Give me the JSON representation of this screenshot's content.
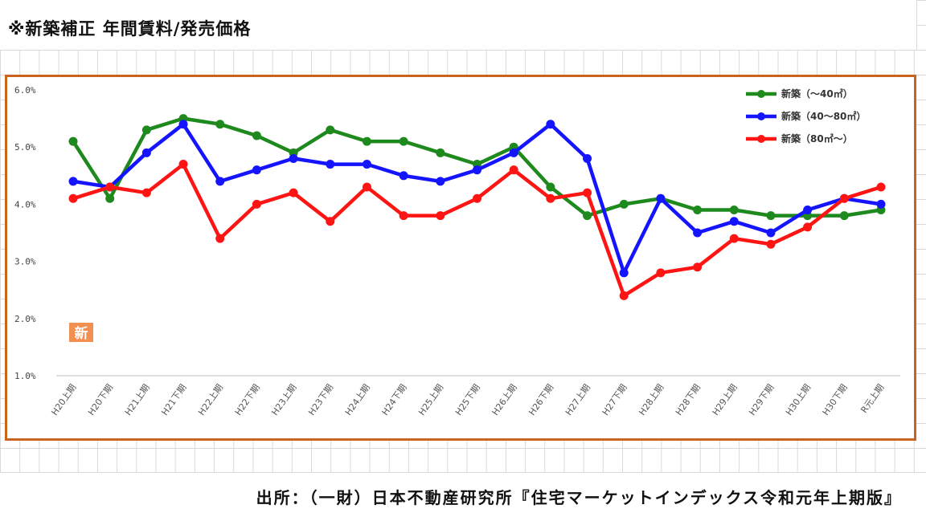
{
  "header": {
    "title": "※新築補正 年間賃料/発売価格"
  },
  "footer": {
    "source": "出所：（一財）日本不動産研究所『住宅マーケットインデックス令和元年上期版』"
  },
  "logo": {
    "char": "新",
    "color": "#f29052"
  },
  "chart_data": {
    "type": "line",
    "categories": [
      "H20上期",
      "H20下期",
      "H21上期",
      "H21下期",
      "H22上期",
      "H22下期",
      "H23上期",
      "H23下期",
      "H24上期",
      "H24下期",
      "H25上期",
      "H25下期",
      "H26上期",
      "H26下期",
      "H27上期",
      "H27下期",
      "H28上期",
      "H28下期",
      "H29上期",
      "H29下期",
      "H30上期",
      "H30下期",
      "R元上期"
    ],
    "series": [
      {
        "name": "新築（～40㎡）",
        "color": "#1e8a1e",
        "values": [
          5.1,
          4.1,
          5.3,
          5.5,
          5.4,
          5.2,
          4.9,
          5.3,
          5.1,
          5.1,
          4.9,
          4.7,
          5.0,
          4.3,
          3.8,
          4.0,
          4.1,
          3.9,
          3.9,
          3.8,
          3.8,
          3.8,
          3.9
        ]
      },
      {
        "name": "新築（40～80㎡）",
        "color": "#1414ff",
        "values": [
          4.4,
          4.3,
          4.9,
          5.4,
          4.4,
          4.6,
          4.8,
          4.7,
          4.7,
          4.5,
          4.4,
          4.6,
          4.9,
          5.4,
          4.8,
          2.8,
          4.1,
          3.5,
          3.7,
          3.5,
          3.9,
          4.1,
          4.0
        ]
      },
      {
        "name": "新築（80㎡～）",
        "color": "#ff1414",
        "values": [
          4.1,
          4.3,
          4.2,
          4.7,
          3.4,
          4.0,
          4.2,
          3.7,
          4.3,
          3.8,
          3.8,
          4.1,
          4.6,
          4.1,
          4.2,
          2.4,
          2.8,
          2.9,
          3.4,
          3.3,
          3.6,
          4.1,
          4.3
        ]
      }
    ],
    "yticks": [
      "6.0%",
      "5.0%",
      "4.0%",
      "3.0%",
      "2.0%",
      "1.0%"
    ],
    "ylim": [
      1.0,
      6.0
    ],
    "legend_position": "top-right"
  }
}
